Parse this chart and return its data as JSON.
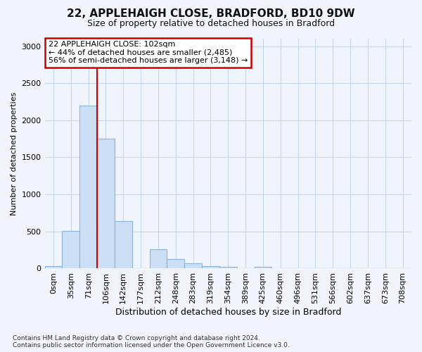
{
  "title": "22, APPLEHAIGH CLOSE, BRADFORD, BD10 9DW",
  "subtitle": "Size of property relative to detached houses in Bradford",
  "xlabel": "Distribution of detached houses by size in Bradford",
  "ylabel": "Number of detached properties",
  "categories": [
    "0sqm",
    "35sqm",
    "71sqm",
    "106sqm",
    "142sqm",
    "177sqm",
    "212sqm",
    "248sqm",
    "283sqm",
    "319sqm",
    "354sqm",
    "389sqm",
    "425sqm",
    "460sqm",
    "496sqm",
    "531sqm",
    "566sqm",
    "602sqm",
    "637sqm",
    "673sqm",
    "708sqm"
  ],
  "values": [
    30,
    510,
    2200,
    1750,
    640,
    0,
    260,
    130,
    75,
    30,
    20,
    5,
    25,
    5,
    0,
    0,
    0,
    0,
    0,
    0,
    0
  ],
  "bar_color": "#ccdff5",
  "bar_edgecolor": "#8cb4d8",
  "annotation_text_line1": "22 APPLEHAIGH CLOSE: 102sqm",
  "annotation_text_line2": "← 44% of detached houses are smaller (2,485)",
  "annotation_text_line3": "56% of semi-detached houses are larger (3,148) →",
  "annotation_box_facecolor": "#ffffff",
  "annotation_box_edgecolor": "#cc0000",
  "vline_x": 3,
  "vline_color": "#cc0000",
  "grid_color": "#c8d8ec",
  "background_color": "#f0f4fc",
  "footnote_line1": "Contains HM Land Registry data © Crown copyright and database right 2024.",
  "footnote_line2": "Contains public sector information licensed under the Open Government Licence v3.0.",
  "ylim": [
    0,
    3100
  ],
  "yticks": [
    0,
    500,
    1000,
    1500,
    2000,
    2500,
    3000
  ],
  "title_fontsize": 11,
  "subtitle_fontsize": 9,
  "xlabel_fontsize": 9,
  "ylabel_fontsize": 8,
  "tick_fontsize": 8,
  "annot_fontsize": 8
}
